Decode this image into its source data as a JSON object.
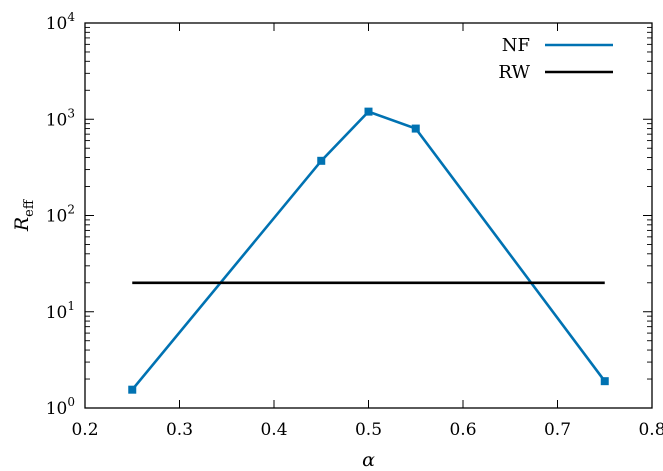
{
  "chart_data": {
    "type": "line",
    "xlabel": "α",
    "ylabel": "R",
    "ylabel_sub": "eff",
    "xlim": [
      0.2,
      0.8
    ],
    "ylim": [
      1,
      10000
    ],
    "yscale": "log",
    "grid": false,
    "legend_position": "top-right",
    "x_ticks": [
      "0.2",
      "0.3",
      "0.4",
      "0.5",
      "0.6",
      "0.7",
      "0.8"
    ],
    "y_ticks": [
      {
        "base": "10",
        "exp": "0"
      },
      {
        "base": "10",
        "exp": "1"
      },
      {
        "base": "10",
        "exp": "2"
      },
      {
        "base": "10",
        "exp": "3"
      },
      {
        "base": "10",
        "exp": "4"
      }
    ],
    "series": [
      {
        "name": "NF",
        "color": "#0072b2",
        "markers": true,
        "x": [
          0.25,
          0.45,
          0.5,
          0.55,
          0.75
        ],
        "y": [
          1.55,
          370,
          1200,
          800,
          1.9
        ]
      },
      {
        "name": "RW",
        "color": "#000000",
        "markers": false,
        "x": [
          0.25,
          0.75
        ],
        "y": [
          20,
          20
        ]
      }
    ]
  }
}
